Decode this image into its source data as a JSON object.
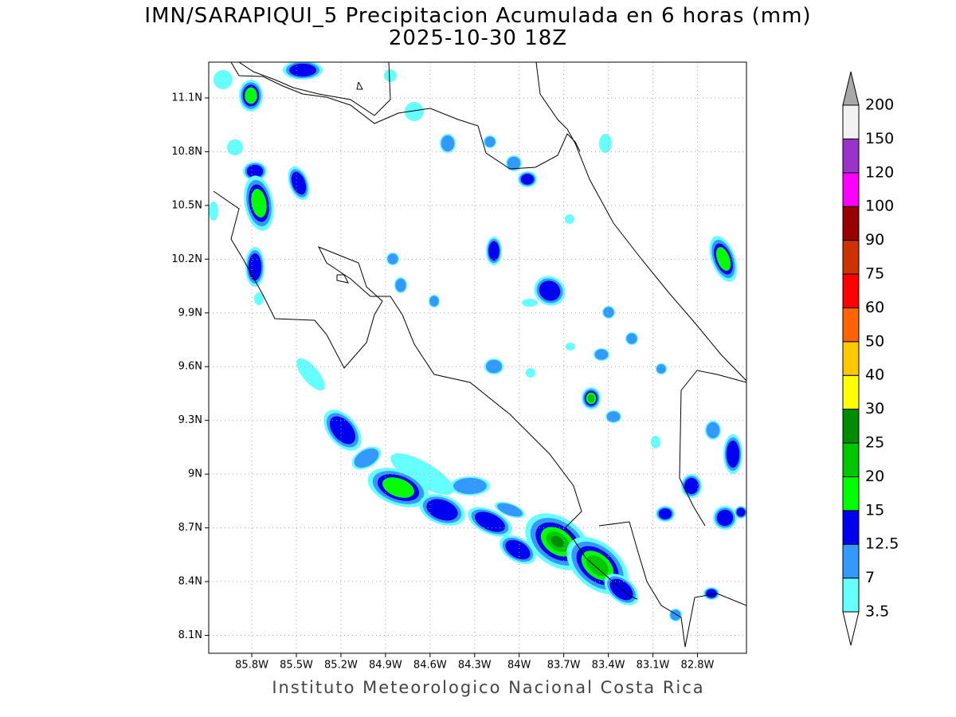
{
  "title": [
    "IMN/SARAPIQUI_5 Precipitacion Acumulada en 6 horas (mm)",
    "2025-10-30 18Z"
  ],
  "footer": "Instituto Meteorologico Nacional Costa Rica",
  "map": {
    "xlim": [
      -86.09,
      -82.47
    ],
    "ylim": [
      8.0,
      11.3
    ],
    "grid": true,
    "xticks": [
      {
        "value": -85.8,
        "label": "85.8W"
      },
      {
        "value": -85.5,
        "label": "85.5W"
      },
      {
        "value": -85.2,
        "label": "85.2W"
      },
      {
        "value": -84.9,
        "label": "84.9W"
      },
      {
        "value": -84.6,
        "label": "84.6W"
      },
      {
        "value": -84.3,
        "label": "84.3W"
      },
      {
        "value": -84.0,
        "label": "84W"
      },
      {
        "value": -83.7,
        "label": "83.7W"
      },
      {
        "value": -83.4,
        "label": "83.4W"
      },
      {
        "value": -83.1,
        "label": "83.1W"
      },
      {
        "value": -82.8,
        "label": "82.8W"
      }
    ],
    "yticks": [
      {
        "value": 8.1,
        "label": "8.1N"
      },
      {
        "value": 8.4,
        "label": "8.4N"
      },
      {
        "value": 8.7,
        "label": "8.7N"
      },
      {
        "value": 9.0,
        "label": "9N"
      },
      {
        "value": 9.3,
        "label": "9.3N"
      },
      {
        "value": 9.6,
        "label": "9.6N"
      },
      {
        "value": 9.9,
        "label": "9.9N"
      },
      {
        "value": 10.2,
        "label": "10.2N"
      },
      {
        "value": 10.5,
        "label": "10.5N"
      },
      {
        "value": 10.8,
        "label": "10.8N"
      },
      {
        "value": 11.1,
        "label": "11.1N"
      }
    ]
  },
  "colorbar": {
    "levels": [
      3.5,
      7,
      12.5,
      15,
      20,
      25,
      30,
      40,
      50,
      60,
      75,
      90,
      100,
      120,
      150,
      200
    ],
    "colors": [
      "#66ffff",
      "#3399ff",
      "#0000f0",
      "#00ff00",
      "#00c800",
      "#008c00",
      "#ffff00",
      "#ffc800",
      "#ff6400",
      "#ff0000",
      "#cc3300",
      "#990000",
      "#ff00ff",
      "#9933cc",
      "#f2f2f2"
    ],
    "under_color": "#ffffff",
    "over_color": "#a8a8a8"
  }
}
